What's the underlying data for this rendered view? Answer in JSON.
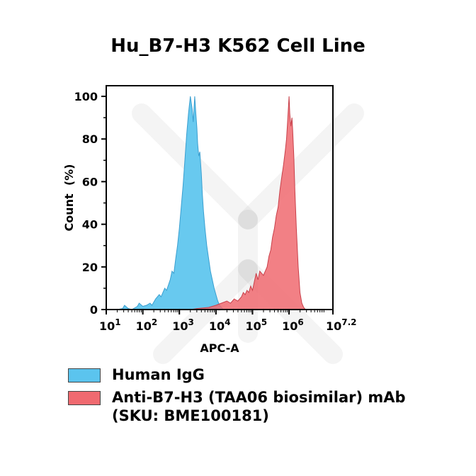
{
  "title": "Hu_B7-H3 K562 Cell Line",
  "chart_data": {
    "type": "area",
    "title": "Hu_B7-H3 K562 Cell Line",
    "xlabel": "APC-A",
    "ylabel": "Count  (%)",
    "xscale": "log10",
    "xlim": [
      1,
      7.2
    ],
    "ylim": [
      0,
      105
    ],
    "x_ticks": [
      {
        "base": "10",
        "exp": "1",
        "value": 1
      },
      {
        "base": "10",
        "exp": "2",
        "value": 2
      },
      {
        "base": "10",
        "exp": "3",
        "value": 3
      },
      {
        "base": "10",
        "exp": "4",
        "value": 4
      },
      {
        "base": "10",
        "exp": "5",
        "value": 5
      },
      {
        "base": "10",
        "exp": "6",
        "value": 6
      },
      {
        "base": "10",
        "exp": "7.2",
        "value": 7.2
      }
    ],
    "y_ticks": [
      "0",
      "20",
      "40",
      "60",
      "80",
      "100"
    ],
    "y_tick_values": [
      0,
      20,
      40,
      60,
      80,
      100
    ],
    "grid": false,
    "legend_position": "bottom",
    "series": [
      {
        "name": "Human IgG",
        "color": "#5bc4ee",
        "x": [
          1.0,
          1.3,
          1.45,
          1.5,
          1.6,
          1.7,
          1.85,
          1.9,
          2.0,
          2.1,
          2.2,
          2.25,
          2.35,
          2.45,
          2.5,
          2.6,
          2.65,
          2.75,
          2.8,
          2.85,
          2.9,
          2.95,
          3.0,
          3.05,
          3.1,
          3.15,
          3.2,
          3.25,
          3.3,
          3.35,
          3.38,
          3.42,
          3.45,
          3.48,
          3.5,
          3.53,
          3.56,
          3.6,
          3.63,
          3.66,
          3.7,
          3.75,
          3.8,
          3.85,
          3.9,
          3.95,
          4.0,
          4.05,
          4.1,
          4.15,
          4.2
        ],
        "y": [
          0,
          0,
          0.5,
          2,
          0.5,
          0,
          1.5,
          3,
          1.5,
          2,
          3,
          2,
          5,
          7,
          6,
          10,
          9,
          14,
          18,
          17,
          24,
          30,
          38,
          48,
          58,
          70,
          82,
          92,
          100,
          94,
          88,
          100,
          92,
          85,
          78,
          72,
          74,
          64,
          54,
          46,
          38,
          30,
          24,
          18,
          14,
          10,
          7,
          4,
          2,
          1,
          0
        ]
      },
      {
        "name": "Anti-B7-H3 (TAA06 biosimilar) mAb (SKU: BME100181)",
        "color": "#f06a70",
        "x": [
          3.3,
          3.5,
          3.8,
          4.0,
          4.15,
          4.3,
          4.4,
          4.5,
          4.6,
          4.7,
          4.75,
          4.8,
          4.85,
          4.9,
          4.95,
          5.0,
          5.05,
          5.1,
          5.15,
          5.2,
          5.3,
          5.4,
          5.45,
          5.5,
          5.55,
          5.6,
          5.65,
          5.7,
          5.75,
          5.8,
          5.85,
          5.9,
          5.93,
          5.96,
          6.0,
          6.02,
          6.05,
          6.08,
          6.1,
          6.13,
          6.16,
          6.2,
          6.25,
          6.3,
          6.35,
          6.4,
          6.45
        ],
        "y": [
          0,
          0.5,
          1,
          2,
          3,
          4,
          3,
          5,
          4,
          6,
          8,
          7,
          9,
          8,
          11,
          9,
          13,
          17,
          14,
          18,
          16,
          20,
          25,
          28,
          34,
          38,
          44,
          48,
          56,
          62,
          68,
          75,
          80,
          88,
          100,
          92,
          86,
          90,
          84,
          72,
          56,
          38,
          20,
          8,
          3,
          1,
          0
        ]
      }
    ]
  },
  "legend": [
    {
      "label": "Human IgG",
      "color": "#5bc4ee"
    },
    {
      "label": "Anti-B7-H3 (TAA06 biosimilar) mAb\n(SKU: BME100181)",
      "color": "#f06a70"
    }
  ]
}
